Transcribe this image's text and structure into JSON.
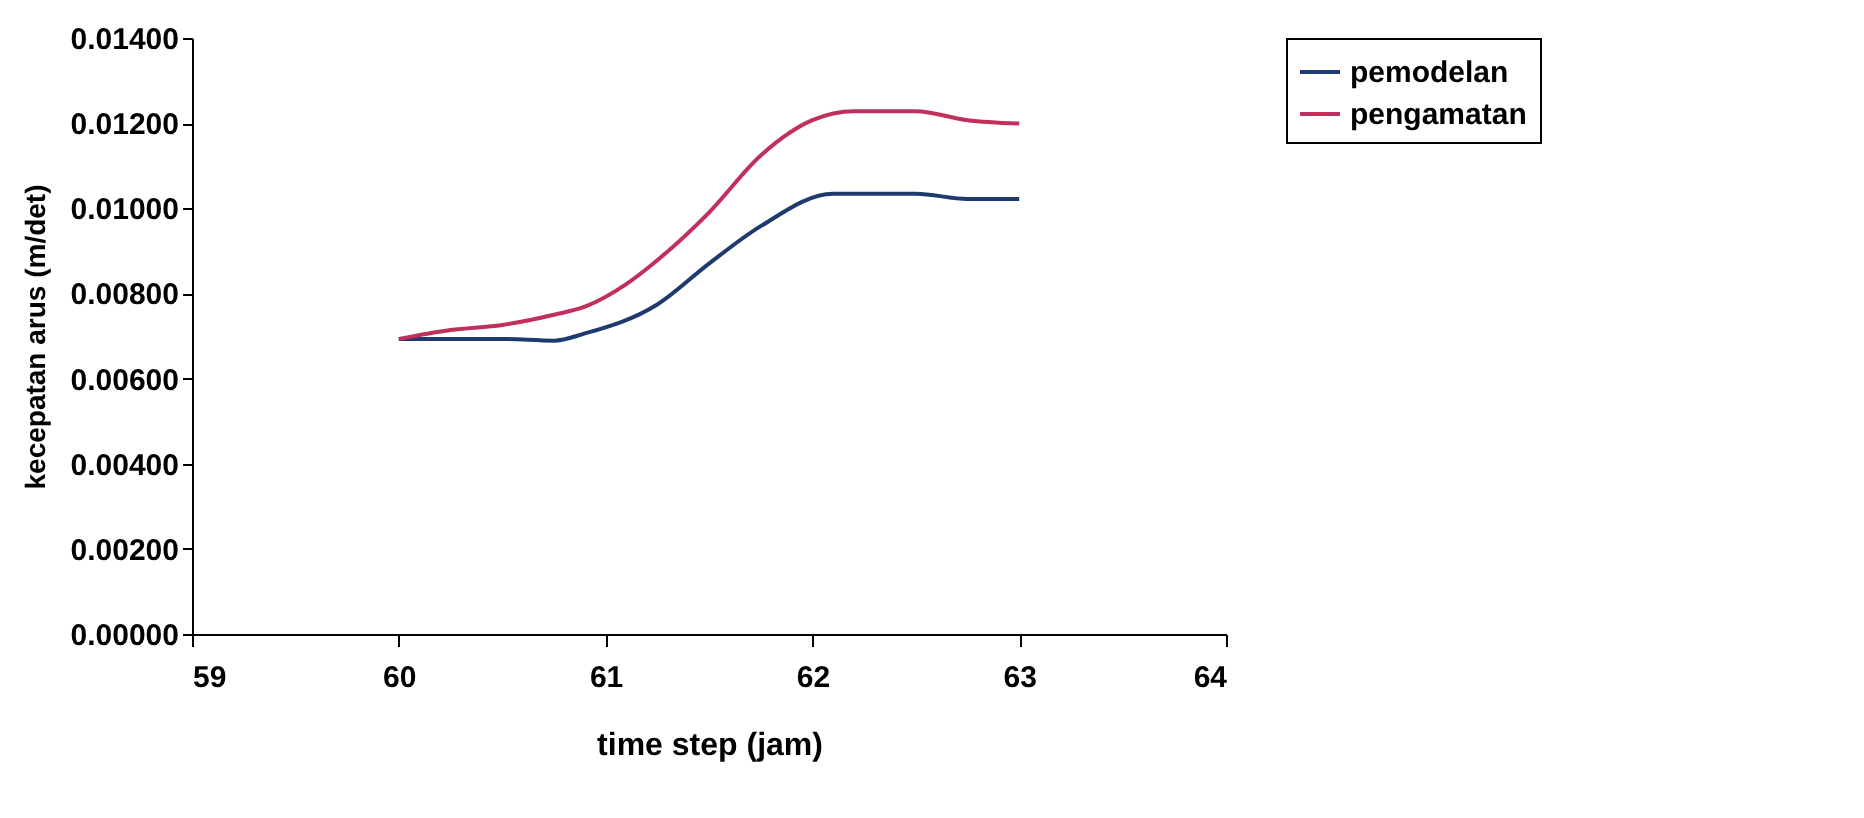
{
  "chart_data": {
    "type": "line",
    "xlabel": "time step (jam)",
    "ylabel": "kecepatan arus (m/det)",
    "xlim": [
      59,
      64
    ],
    "xticks": [
      59,
      60,
      61,
      62,
      63,
      64
    ],
    "ylim": [
      0,
      0.014
    ],
    "yticks": [
      {
        "value": 0,
        "label": "0.00000"
      },
      {
        "value": 0.002,
        "label": "0.00200"
      },
      {
        "value": 0.004,
        "label": "0.00400"
      },
      {
        "value": 0.006,
        "label": "0.00600"
      },
      {
        "value": 0.008,
        "label": "0.00800"
      },
      {
        "value": 0.01,
        "label": "0.01000"
      },
      {
        "value": 0.012,
        "label": "0.01200"
      },
      {
        "value": 0.014,
        "label": "0.01400"
      }
    ],
    "grid": false,
    "legend": "right",
    "marker": "none",
    "line_style": "solid",
    "series": [
      {
        "name": "pemodelan",
        "color": "#1f3a6e",
        "x": [
          60,
          60.5,
          60.75,
          60.9,
          61.25,
          61.5,
          61.75,
          62.1,
          62.5,
          62.75,
          63
        ],
        "values": [
          0.00693,
          0.00693,
          0.00689,
          0.00706,
          0.00774,
          0.0087,
          0.00958,
          0.01034,
          0.01034,
          0.01022,
          0.01022
        ]
      },
      {
        "name": "pengamatan",
        "color": "#c0305a",
        "x": [
          60,
          60.25,
          60.5,
          60.75,
          60.9,
          61.1,
          61.25,
          61.5,
          61.75,
          62,
          62.2,
          62.5,
          62.75,
          63
        ],
        "values": [
          0.00693,
          0.00714,
          0.00726,
          0.0075,
          0.00769,
          0.00822,
          0.00878,
          0.0099,
          0.01124,
          0.01207,
          0.01228,
          0.01228,
          0.01207,
          0.01199
        ]
      }
    ]
  }
}
